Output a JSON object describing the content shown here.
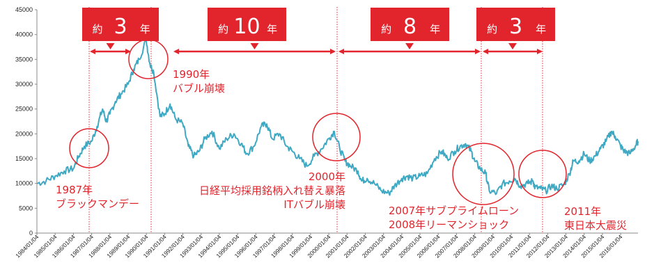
{
  "chart_data": {
    "type": "line",
    "title": "",
    "xlabel": "",
    "ylabel": "",
    "ylim": [
      0,
      45000
    ],
    "yticks": [
      "0",
      "5000",
      "10000",
      "15000",
      "20000",
      "25000",
      "30000",
      "35000",
      "40000",
      "45000"
    ],
    "xticks": [
      "1984/01/04",
      "1985/01/04",
      "1986/01/04",
      "1987/01/04",
      "1988/01/04",
      "1989/01/04",
      "1990/01/04",
      "1991/01/04",
      "1992/01/04",
      "1993/01/04",
      "1994/01/04",
      "1995/01/04",
      "1996/01/04",
      "1997/01/04",
      "1998/01/04",
      "1999/01/04",
      "2000/01/04",
      "2001/01/04",
      "2002/01/04",
      "2003/01/04",
      "2004/01/04",
      "2005/01/04",
      "2006/01/04",
      "2007/01/04",
      "2008/01/04",
      "2009/01/04",
      "2010/01/04",
      "2011/01/04",
      "2012/01/04",
      "2013/01/04",
      "2014/01/04",
      "2015/01/04",
      "2016/01/04"
    ],
    "grid": false,
    "line_color": "#3fa9c4",
    "accent_color": "#e2242c",
    "series": [
      {
        "x": [
          1984.0,
          1984.5,
          1985.0,
          1985.5,
          1986.0,
          1986.3,
          1986.6,
          1987.0,
          1987.3,
          1987.6,
          1987.8,
          1988.0,
          1988.3,
          1988.6,
          1989.0,
          1989.3,
          1989.6,
          1989.99,
          1990.2,
          1990.4,
          1990.75,
          1991.0,
          1991.3,
          1991.6,
          1992.0,
          1992.3,
          1992.6,
          1992.9,
          1993.2,
          1993.6,
          1994.0,
          1994.4,
          1994.8,
          1995.2,
          1995.5,
          1995.9,
          1996.3,
          1996.6,
          1996.9,
          1997.3,
          1997.7,
          1998.0,
          1998.4,
          1998.8,
          1999.2,
          1999.6,
          2000.0,
          2000.3,
          2000.6,
          2000.9,
          2001.2,
          2001.6,
          2001.8,
          2002.1,
          2002.5,
          2002.9,
          2003.3,
          2003.6,
          2004.0,
          2004.3,
          2004.6,
          2005.0,
          2005.4,
          2005.8,
          2006.2,
          2006.5,
          2006.9,
          2007.2,
          2007.5,
          2007.8,
          2008.0,
          2008.3,
          2008.6,
          2008.8,
          2009.2,
          2009.5,
          2009.9,
          2010.2,
          2010.5,
          2010.9,
          2011.2,
          2011.3,
          2011.6,
          2011.9,
          2012.2,
          2012.5,
          2012.9,
          2013.2,
          2013.4,
          2013.7,
          2014.0,
          2014.3,
          2014.6,
          2014.9,
          2015.2,
          2015.5,
          2015.7,
          2016.0,
          2016.2,
          2016.5,
          2016.8,
          2016.95
        ],
        "y": [
          10000,
          10500,
          11500,
          12500,
          13000,
          15500,
          17500,
          18500,
          21500,
          25000,
          22500,
          24000,
          26500,
          28000,
          30000,
          33000,
          35000,
          38900,
          34000,
          32500,
          23500,
          24000,
          26000,
          23000,
          22000,
          17500,
          15500,
          16500,
          19000,
          20500,
          17000,
          19000,
          20000,
          18000,
          16000,
          17500,
          21500,
          22000,
          19000,
          20000,
          17500,
          16500,
          15000,
          13500,
          15500,
          17000,
          19000,
          20500,
          17000,
          14500,
          13500,
          12500,
          10500,
          11000,
          10000,
          8500,
          8000,
          9500,
          11000,
          11500,
          11000,
          11500,
          12000,
          15000,
          16500,
          15000,
          16500,
          17500,
          18000,
          16500,
          14500,
          13000,
          12000,
          8500,
          8000,
          9800,
          10500,
          11000,
          9500,
          10000,
          10500,
          9200,
          9000,
          8500,
          9500,
          9000,
          9800,
          12000,
          14500,
          14500,
          16000,
          14500,
          15500,
          17000,
          18500,
          20500,
          19500,
          17500,
          16500,
          16000,
          17500,
          18500
        ]
      }
    ],
    "annotations": [
      {
        "text": [
          "1987年",
          "ブラックマンデー"
        ]
      },
      {
        "text": [
          "1990年",
          "バブル崩壊"
        ]
      },
      {
        "text": [
          "2000年",
          "日経平均採用銘柄入れ替え暴落",
          "ITバブル崩壊"
        ]
      },
      {
        "text": [
          "2007年サブプライムローン",
          "2008年リーマンショック"
        ]
      },
      {
        "text": [
          "2011年",
          "東日本大震災"
        ]
      }
    ],
    "period_boxes": [
      {
        "prefix": "約",
        "number": "3",
        "suffix": "年"
      },
      {
        "prefix": "約",
        "number": "10",
        "suffix": "年"
      },
      {
        "prefix": "約",
        "number": "8",
        "suffix": "年"
      },
      {
        "prefix": "約",
        "number": "3",
        "suffix": "年"
      }
    ]
  }
}
